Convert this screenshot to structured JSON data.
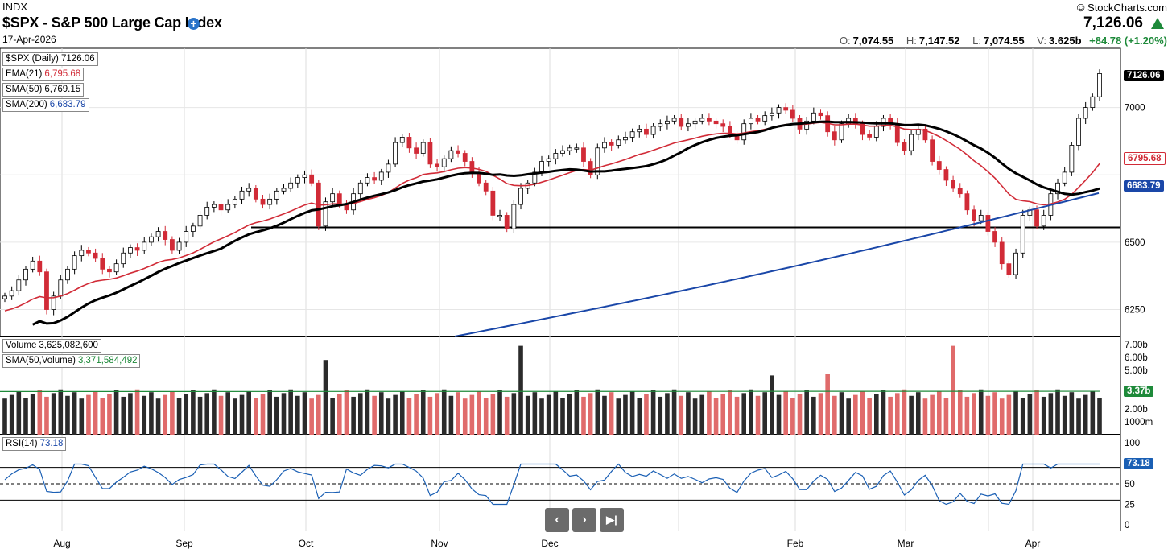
{
  "header": {
    "exchange": "INDX",
    "title": "$SPX - S&P 500 Large Cap Index",
    "date": "17-Apr-2026",
    "brand": "© StockCharts.com",
    "last": "7,126.06",
    "open_label": "O:",
    "open": "7,074.55",
    "high_label": "H:",
    "high": "7,147.52",
    "low_label": "L:",
    "low": "7,074.55",
    "volume_label": "V:",
    "volume": "3.625b",
    "change": "+84.78 (+1.20%)"
  },
  "legends": {
    "price": "$SPX (Daily) 7126.06",
    "ema_label": "EMA(21)",
    "ema_value": "6,795.68",
    "sma50_label": "SMA(50)",
    "sma50_value": "6,769.15",
    "sma200_label": "SMA(200)",
    "sma200_value": "6,683.79",
    "volume_label": "Volume",
    "volume_value": "3,625,082,600",
    "volsma_label": "SMA(50,Volume)",
    "volsma_value": "3,371,584,492",
    "rsi_label": "RSI(14)",
    "rsi_value": "73.18"
  },
  "tags": {
    "last": "7126.06",
    "ema": "6795.68",
    "sma200": "6683.79",
    "volsma": "3.37b",
    "rsi": "73.18"
  },
  "colors": {
    "up": "#ffffff",
    "down": "#d12b37",
    "ema": "#d12b37",
    "sma50": "#000000",
    "sma200": "#1a47a8",
    "vol_up": "#2b2b2b",
    "vol_down": "#e06b6b",
    "volsma": "#1e8a3a",
    "rsi": "#1a5fb4",
    "support": "#000000"
  },
  "chart_data": [
    {
      "type": "candlestick",
      "title": "$SPX - S&P 500 Large Cap Index",
      "yticks": [
        "7000",
        "6500",
        "6250"
      ],
      "x_month_labels": [
        "Aug",
        "Sep",
        "Oct",
        "Nov",
        "Dec",
        "Feb",
        "Mar",
        "Apr"
      ],
      "support_level": 6555,
      "close_series_key": [
        6300,
        6320,
        6360,
        6400,
        6430,
        6390,
        6250,
        6300,
        6360,
        6400,
        6450,
        6470,
        6460,
        6440,
        6400,
        6390,
        6420,
        6460,
        6480,
        6470,
        6500,
        6520,
        6540,
        6510,
        6470,
        6500,
        6540,
        6560,
        6600,
        6630,
        6640,
        6620,
        6640,
        6660,
        6690,
        6700,
        6660,
        6640,
        6660,
        6690,
        6700,
        6720,
        6740,
        6750,
        6720,
        6560,
        6650,
        6680,
        6640,
        6620,
        6680,
        6720,
        6740,
        6730,
        6760,
        6790,
        6870,
        6890,
        6850,
        6830,
        6870,
        6790,
        6780,
        6810,
        6840,
        6830,
        6800,
        6760,
        6720,
        6690,
        6600,
        6600,
        6550,
        6640,
        6700,
        6720,
        6760,
        6800,
        6810,
        6830,
        6840,
        6850,
        6850,
        6800,
        6750,
        6850,
        6870,
        6860,
        6880,
        6890,
        6910,
        6920,
        6900,
        6930,
        6940,
        6950,
        6960,
        6930,
        6940,
        6950,
        6960,
        6950,
        6940,
        6930,
        6900,
        6880,
        6940,
        6960,
        6950,
        6970,
        6980,
        7000,
        6990,
        6960,
        6920,
        6950,
        6980,
        6970,
        6910,
        6880,
        6940,
        6960,
        6940,
        6900,
        6890,
        6930,
        6960,
        6940,
        6870,
        6840,
        6900,
        6920,
        6880,
        6800,
        6770,
        6730,
        6700,
        6680,
        6620,
        6580,
        6600,
        6540,
        6500,
        6420,
        6380,
        6460,
        6600,
        6620,
        6560,
        6600,
        6680,
        6720,
        6760,
        6860,
        6960,
        7000,
        7040,
        7126
      ],
      "ema_21_last": 6795.68,
      "sma_50_last": 6769.15,
      "sma_200_last": 6683.79,
      "last_close": 7126.06
    },
    {
      "type": "bar",
      "title": "Volume",
      "yticks": [
        "7.00b",
        "6.00b",
        "5.00b",
        "2.00b",
        "1000m"
      ],
      "sma_last": 3.37,
      "last": 3.625
    },
    {
      "type": "line",
      "title": "RSI(14)",
      "yticks": [
        "100",
        "50",
        "25",
        "0"
      ],
      "levels": [
        70,
        50,
        30
      ],
      "last": 73.18
    }
  ]
}
